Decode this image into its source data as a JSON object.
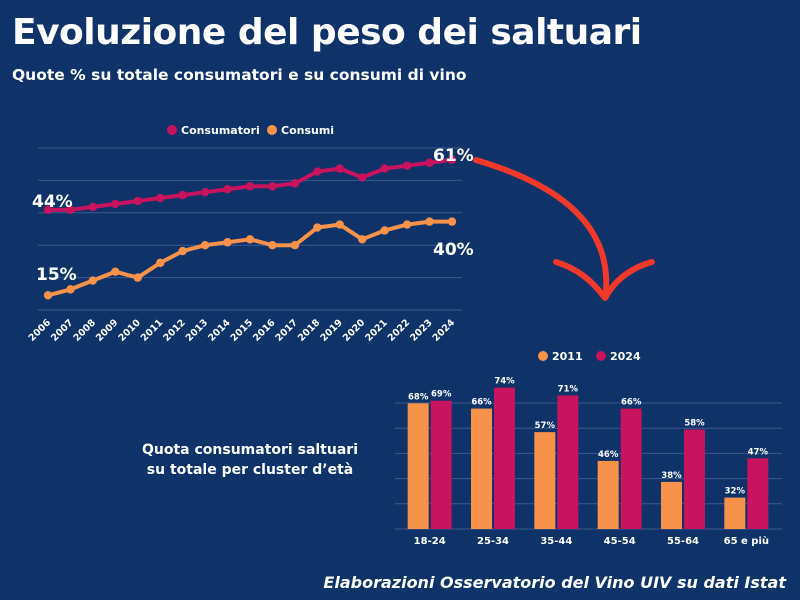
{
  "page": {
    "title": "Evoluzione del peso dei saltuari",
    "subtitle": "Quote % su totale consumatori e su consumi di vino",
    "cluster_title_line1": "Quota consumatori saltuari",
    "cluster_title_line2": "su totale per cluster d’età",
    "source": "Elaborazioni Osservatorio del Vino UIV su dati Istat"
  },
  "colors": {
    "background": "#0f3268",
    "magenta": "#c8135e",
    "orange": "#f6924a",
    "arrow": "#f0392b",
    "grid": "#3d5a8c"
  },
  "chart_data": [
    {
      "type": "line",
      "x": [
        "2006",
        "2007",
        "2008",
        "2009",
        "2010",
        "2011",
        "2012",
        "2013",
        "2014",
        "2015",
        "2016",
        "2017",
        "2018",
        "2019",
        "2020",
        "2021",
        "2022",
        "2023",
        "2024"
      ],
      "series": [
        {
          "name": "Consumatori",
          "color": "#c8135e",
          "values": [
            44,
            44,
            45,
            46,
            47,
            48,
            49,
            50,
            51,
            52,
            52,
            53,
            57,
            58,
            55,
            58,
            59,
            60,
            61
          ]
        },
        {
          "name": "Consumi",
          "color": "#f6924a",
          "values": [
            15,
            17,
            20,
            23,
            21,
            26,
            30,
            32,
            33,
            34,
            32,
            32,
            38,
            39,
            34,
            37,
            39,
            40,
            40
          ]
        }
      ],
      "annotations": [
        "44%",
        "61%",
        "15%",
        "40%"
      ],
      "ylim": [
        10,
        65
      ],
      "legend": "top-center",
      "grid": true
    },
    {
      "type": "bar",
      "categories": [
        "18-24",
        "25-34",
        "35-44",
        "45-54",
        "55-64",
        "65 e più"
      ],
      "series": [
        {
          "name": "2011",
          "color": "#f6924a",
          "values": [
            68,
            66,
            57,
            46,
            38,
            32
          ],
          "labels": [
            "68%",
            "66%",
            "57%",
            "46%",
            "38%",
            "32%"
          ]
        },
        {
          "name": "2024",
          "color": "#c8135e",
          "values": [
            69,
            74,
            71,
            66,
            58,
            47
          ],
          "labels": [
            "69%",
            "74%",
            "71%",
            "66%",
            "58%",
            "47%"
          ]
        }
      ],
      "ylim": [
        20,
        75
      ],
      "legend": "top-center",
      "grid": true
    }
  ]
}
